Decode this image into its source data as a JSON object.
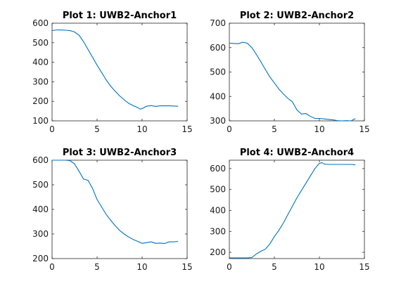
{
  "figure": {
    "background": "#ffffff",
    "line_color": "#0072BD"
  },
  "chart_data": [
    {
      "type": "line",
      "title": "Plot 1: UWB2-Anchor1",
      "xlim": [
        0,
        15
      ],
      "ylim": [
        100,
        600
      ],
      "xticks": [
        0,
        5,
        10,
        15
      ],
      "yticks": [
        100,
        200,
        300,
        400,
        500,
        600
      ],
      "grid": false,
      "series": [
        {
          "x": [
            0,
            0.3,
            0.6,
            1.0,
            1.5,
            2.0,
            2.5,
            3.0,
            3.5,
            4.0,
            4.5,
            5.0,
            5.5,
            6.0,
            6.5,
            7.0,
            7.5,
            8.0,
            8.5,
            9.0,
            9.5,
            9.8,
            10.0,
            10.5,
            11.0,
            11.5,
            12.0,
            12.5,
            13.0,
            13.5,
            14.0
          ],
          "y": [
            562,
            564,
            566,
            565,
            564,
            562,
            555,
            538,
            505,
            465,
            425,
            385,
            348,
            310,
            278,
            252,
            228,
            208,
            190,
            178,
            168,
            160,
            163,
            175,
            178,
            174,
            177,
            177,
            177,
            176,
            175
          ]
        }
      ]
    },
    {
      "type": "line",
      "title": "Plot 2: UWB2-Anchor2",
      "xlim": [
        0,
        15
      ],
      "ylim": [
        300,
        700
      ],
      "xticks": [
        0,
        5,
        10,
        15
      ],
      "yticks": [
        300,
        400,
        500,
        600,
        700
      ],
      "grid": false,
      "series": [
        {
          "x": [
            0,
            0.5,
            1.0,
            1.5,
            2.0,
            2.5,
            3.0,
            3.5,
            4.0,
            4.5,
            5.0,
            5.5,
            6.0,
            6.5,
            7.0,
            7.5,
            8.0,
            8.5,
            9.0,
            9.5,
            10.0,
            10.5,
            11.0,
            11.5,
            12.0,
            12.5,
            13.0,
            13.5,
            14.0
          ],
          "y": [
            618,
            617,
            616,
            622,
            618,
            600,
            572,
            542,
            510,
            480,
            455,
            430,
            410,
            392,
            378,
            345,
            328,
            330,
            318,
            310,
            310,
            308,
            306,
            304,
            301,
            299,
            301,
            299,
            309
          ]
        }
      ]
    },
    {
      "type": "line",
      "title": "Plot 3: UWB2-Anchor3",
      "xlim": [
        0,
        15
      ],
      "ylim": [
        200,
        600
      ],
      "xticks": [
        0,
        5,
        10,
        15
      ],
      "yticks": [
        200,
        300,
        400,
        500,
        600
      ],
      "grid": false,
      "series": [
        {
          "x": [
            0,
            0.5,
            1.0,
            1.5,
            2.0,
            2.5,
            3.0,
            3.5,
            4.0,
            4.5,
            5.0,
            5.5,
            6.0,
            6.5,
            7.0,
            7.5,
            8.0,
            8.5,
            9.0,
            9.5,
            10.0,
            10.5,
            11.0,
            11.5,
            12.0,
            12.5,
            13.0,
            13.5,
            14.0
          ],
          "y": [
            600,
            600,
            600,
            600,
            598,
            585,
            555,
            523,
            518,
            485,
            440,
            410,
            380,
            356,
            334,
            315,
            300,
            288,
            278,
            270,
            262,
            265,
            268,
            262,
            263,
            261,
            268,
            268,
            270
          ]
        }
      ]
    },
    {
      "type": "line",
      "title": "Plot 4: UWB2-Anchor4",
      "xlim": [
        0,
        15
      ],
      "ylim": [
        170,
        640
      ],
      "xticks": [
        0,
        5,
        10,
        15
      ],
      "yticks": [
        200,
        300,
        400,
        500,
        600
      ],
      "grid": false,
      "series": [
        {
          "x": [
            0,
            0.5,
            1.0,
            1.5,
            2.0,
            2.5,
            3.0,
            3.5,
            4.0,
            4.5,
            5.0,
            5.5,
            6.0,
            6.5,
            7.0,
            7.5,
            8.0,
            8.5,
            9.0,
            9.5,
            10.0,
            10.3,
            10.5,
            11.0,
            11.5,
            12.0,
            12.5,
            13.0,
            13.5,
            14.0
          ],
          "y": [
            173,
            173,
            173,
            173,
            173,
            175,
            192,
            205,
            215,
            240,
            275,
            305,
            340,
            380,
            420,
            460,
            495,
            530,
            565,
            600,
            625,
            628,
            622,
            620,
            620,
            620,
            620,
            620,
            620,
            618
          ]
        }
      ]
    }
  ]
}
